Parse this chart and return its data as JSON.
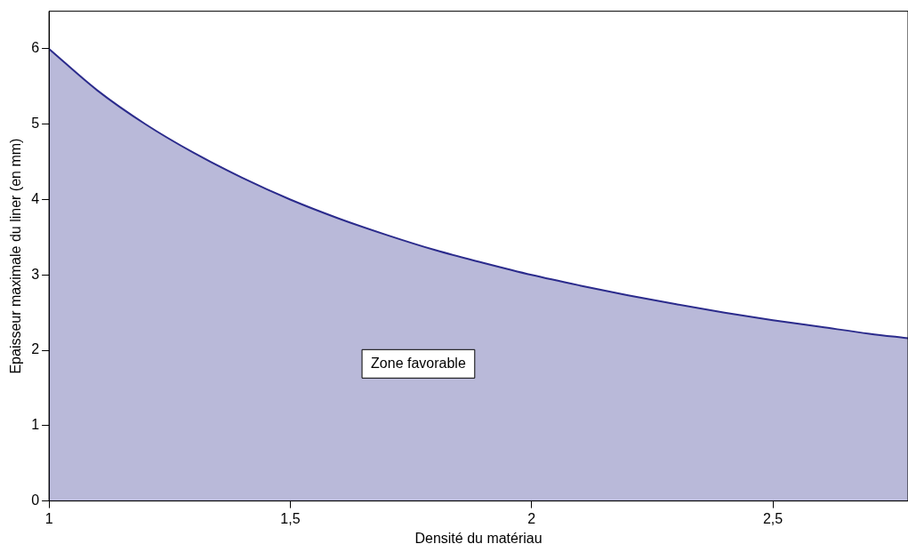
{
  "chart_data": {
    "type": "area",
    "xlabel": "Densité du matériau",
    "ylabel": "Epaisseur maximale du liner (en mm)",
    "x": [
      1,
      1.1,
      1.2,
      1.3,
      1.4,
      1.5,
      1.6,
      1.7,
      1.8,
      1.9,
      2,
      2.1,
      2.2,
      2.3,
      2.4,
      2.5,
      2.6,
      2.7,
      2.78
    ],
    "series": [
      {
        "color": "#2b2b8c",
        "values": [
          6,
          5.45,
          5,
          4.62,
          4.29,
          4,
          3.75,
          3.53,
          3.33,
          3.16,
          3,
          2.86,
          2.73,
          2.61,
          2.5,
          2.4,
          2.31,
          2.22,
          2.16
        ]
      }
    ],
    "xlim": [
      1,
      2.78
    ],
    "xticks": [
      1,
      {
        "value": 1.5,
        "label": "1,5"
      },
      2,
      {
        "value": 2.5,
        "label": "2,5"
      }
    ],
    "ylim": [
      0,
      6.5
    ],
    "yticks": [
      0,
      1,
      2,
      3,
      4,
      5,
      6
    ],
    "annotations": [
      "Zone favorable"
    ],
    "grid": false,
    "legend": false,
    "marker": "none",
    "line_style": "solid"
  }
}
